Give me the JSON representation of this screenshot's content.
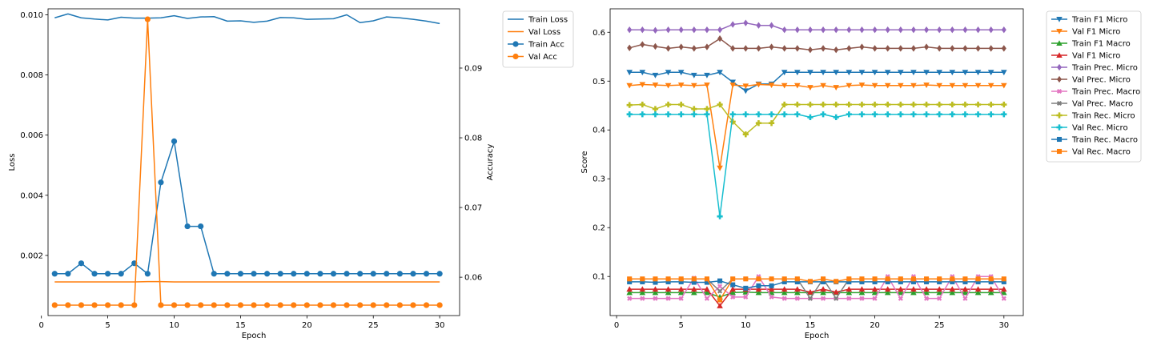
{
  "chart_data": [
    {
      "type": "line",
      "x": [
        1,
        2,
        3,
        4,
        5,
        6,
        7,
        8,
        9,
        10,
        11,
        12,
        13,
        14,
        15,
        16,
        17,
        18,
        19,
        20,
        21,
        22,
        23,
        24,
        25,
        26,
        27,
        28,
        29,
        30
      ],
      "xlabel": "Epoch",
      "ylabel": "Loss",
      "y2label": "Accuracy",
      "xlim": [
        0.5,
        31.5
      ],
      "ylim": [
        0.0,
        0.0102
      ],
      "y2lim": [
        0.0545,
        0.0985
      ],
      "xticks": [
        0,
        5,
        10,
        15,
        20,
        25,
        30
      ],
      "yticks": [
        0.002,
        0.004,
        0.006,
        0.008,
        0.01
      ],
      "ytick_labels": [
        "0.002",
        "0.004",
        "0.006",
        "0.008",
        "0.010"
      ],
      "y2ticks": [
        0.06,
        0.07,
        0.08,
        0.09
      ],
      "y2tick_labels": [
        "0.06",
        "0.07",
        "0.08",
        "0.09"
      ],
      "legend_position": "outside-right",
      "series": [
        {
          "name": "Train Loss",
          "axis": "left",
          "color": "#1f77b4",
          "marker": "none",
          "values": [
            0.0099,
            0.01003,
            0.0099,
            0.00986,
            0.00983,
            0.00992,
            0.00989,
            0.00989,
            0.0099,
            0.00997,
            0.00988,
            0.00993,
            0.00994,
            0.00979,
            0.0098,
            0.00975,
            0.00979,
            0.00991,
            0.0099,
            0.00985,
            0.00986,
            0.00987,
            0.01,
            0.00974,
            0.0098,
            0.00993,
            0.0099,
            0.00985,
            0.00979,
            0.00971
          ]
        },
        {
          "name": "Val Loss",
          "axis": "left",
          "color": "#ff7f0e",
          "marker": "none",
          "values": [
            0.00112,
            0.00112,
            0.00112,
            0.00112,
            0.00112,
            0.00112,
            0.00112,
            0.00113,
            0.00113,
            0.00112,
            0.00112,
            0.00112,
            0.00112,
            0.00112,
            0.00112,
            0.00112,
            0.00112,
            0.00112,
            0.00112,
            0.00112,
            0.00112,
            0.00112,
            0.00112,
            0.00112,
            0.00112,
            0.00112,
            0.00112,
            0.00112,
            0.00112,
            0.00112
          ]
        },
        {
          "name": "Train Acc",
          "axis": "right",
          "color": "#1f77b4",
          "marker": "circle",
          "values": [
            0.0605,
            0.0605,
            0.062,
            0.0605,
            0.0605,
            0.0605,
            0.062,
            0.0605,
            0.0736,
            0.0795,
            0.0673,
            0.0673,
            0.0605,
            0.0605,
            0.0605,
            0.0605,
            0.0605,
            0.0605,
            0.0605,
            0.0605,
            0.0605,
            0.0605,
            0.0605,
            0.0605,
            0.0605,
            0.0605,
            0.0605,
            0.0605,
            0.0605,
            0.0605
          ]
        },
        {
          "name": "Val Acc",
          "axis": "right",
          "color": "#ff7f0e",
          "marker": "circle",
          "values": [
            0.056,
            0.056,
            0.056,
            0.056,
            0.056,
            0.056,
            0.056,
            0.097,
            0.056,
            0.056,
            0.056,
            0.056,
            0.056,
            0.056,
            0.056,
            0.056,
            0.056,
            0.056,
            0.056,
            0.056,
            0.056,
            0.056,
            0.056,
            0.056,
            0.056,
            0.056,
            0.056,
            0.056,
            0.056,
            0.056
          ]
        }
      ]
    },
    {
      "type": "line",
      "x": [
        1,
        2,
        3,
        4,
        5,
        6,
        7,
        8,
        9,
        10,
        11,
        12,
        13,
        14,
        15,
        16,
        17,
        18,
        19,
        20,
        21,
        22,
        23,
        24,
        25,
        26,
        27,
        28,
        29,
        30
      ],
      "xlabel": "Epoch",
      "ylabel": "Score",
      "xlim": [
        -0.5,
        31.5
      ],
      "ylim": [
        0.02,
        0.648
      ],
      "xticks": [
        0,
        5,
        10,
        15,
        20,
        25,
        30
      ],
      "yticks": [
        0.1,
        0.2,
        0.3,
        0.4,
        0.5,
        0.6
      ],
      "ytick_labels": [
        "0.1",
        "0.2",
        "0.3",
        "0.4",
        "0.5",
        "0.6"
      ],
      "legend_position": "outside-right",
      "series": [
        {
          "name": "Train F1 Micro",
          "color": "#1f77b4",
          "marker": "triangle-down",
          "values": [
            0.518,
            0.518,
            0.512,
            0.518,
            0.518,
            0.512,
            0.512,
            0.518,
            0.498,
            0.48,
            0.494,
            0.494,
            0.518,
            0.518,
            0.518,
            0.518,
            0.518,
            0.518,
            0.518,
            0.518,
            0.518,
            0.518,
            0.518,
            0.518,
            0.518,
            0.518,
            0.518,
            0.518,
            0.518,
            0.518
          ]
        },
        {
          "name": "Val F1 Micro",
          "color": "#ff7f0e",
          "marker": "triangle-down",
          "values": [
            0.491,
            0.493,
            0.492,
            0.491,
            0.492,
            0.491,
            0.492,
            0.322,
            0.492,
            0.49,
            0.493,
            0.492,
            0.491,
            0.491,
            0.487,
            0.491,
            0.487,
            0.491,
            0.492,
            0.491,
            0.491,
            0.491,
            0.491,
            0.492,
            0.491,
            0.491,
            0.491,
            0.491,
            0.491,
            0.491
          ]
        },
        {
          "name": "Train F1 Macro",
          "color": "#2ca02c",
          "marker": "triangle-up",
          "values": [
            0.067,
            0.067,
            0.067,
            0.067,
            0.067,
            0.067,
            0.067,
            0.058,
            0.067,
            0.068,
            0.067,
            0.067,
            0.067,
            0.067,
            0.067,
            0.067,
            0.067,
            0.067,
            0.067,
            0.067,
            0.067,
            0.067,
            0.067,
            0.067,
            0.067,
            0.067,
            0.067,
            0.067,
            0.067,
            0.067
          ]
        },
        {
          "name": "Val F1 Micro",
          "color": "#d62728",
          "marker": "triangle-up",
          "values": [
            0.074,
            0.074,
            0.074,
            0.074,
            0.074,
            0.074,
            0.074,
            0.04,
            0.074,
            0.074,
            0.074,
            0.074,
            0.074,
            0.074,
            0.068,
            0.074,
            0.068,
            0.074,
            0.074,
            0.074,
            0.074,
            0.074,
            0.074,
            0.074,
            0.074,
            0.074,
            0.074,
            0.074,
            0.074,
            0.074
          ]
        },
        {
          "name": "Train Prec. Micro",
          "color": "#9467bd",
          "marker": "diamond",
          "values": [
            0.605,
            0.605,
            0.604,
            0.605,
            0.605,
            0.605,
            0.605,
            0.605,
            0.616,
            0.619,
            0.614,
            0.614,
            0.605,
            0.605,
            0.605,
            0.605,
            0.605,
            0.605,
            0.605,
            0.605,
            0.605,
            0.605,
            0.605,
            0.605,
            0.605,
            0.605,
            0.605,
            0.605,
            0.605,
            0.605
          ]
        },
        {
          "name": "Val Prec. Micro",
          "color": "#8c564b",
          "marker": "diamond",
          "values": [
            0.568,
            0.575,
            0.571,
            0.567,
            0.57,
            0.567,
            0.57,
            0.587,
            0.567,
            0.567,
            0.567,
            0.57,
            0.567,
            0.567,
            0.564,
            0.567,
            0.564,
            0.567,
            0.57,
            0.567,
            0.567,
            0.567,
            0.567,
            0.57,
            0.567,
            0.567,
            0.567,
            0.567,
            0.567,
            0.567
          ]
        },
        {
          "name": "Train Prec. Macro",
          "color": "#e377c2",
          "marker": "x",
          "values": [
            0.055,
            0.055,
            0.055,
            0.055,
            0.055,
            0.097,
            0.055,
            0.08,
            0.058,
            0.058,
            0.1,
            0.058,
            0.055,
            0.055,
            0.055,
            0.055,
            0.055,
            0.055,
            0.055,
            0.055,
            0.1,
            0.055,
            0.1,
            0.055,
            0.055,
            0.1,
            0.055,
            0.1,
            0.1,
            0.055
          ]
        },
        {
          "name": "Val Prec. Macro",
          "color": "#7f7f7f",
          "marker": "x",
          "values": [
            0.095,
            0.095,
            0.095,
            0.095,
            0.095,
            0.095,
            0.095,
            0.07,
            0.095,
            0.095,
            0.095,
            0.095,
            0.095,
            0.095,
            0.055,
            0.095,
            0.055,
            0.095,
            0.095,
            0.095,
            0.095,
            0.095,
            0.095,
            0.095,
            0.095,
            0.095,
            0.095,
            0.095,
            0.095,
            0.095
          ]
        },
        {
          "name": "Train Rec. Micro",
          "color": "#bcbd22",
          "marker": "plus",
          "values": [
            0.451,
            0.452,
            0.443,
            0.452,
            0.452,
            0.443,
            0.443,
            0.452,
            0.417,
            0.391,
            0.414,
            0.414,
            0.452,
            0.452,
            0.452,
            0.452,
            0.452,
            0.452,
            0.452,
            0.452,
            0.452,
            0.452,
            0.452,
            0.452,
            0.452,
            0.452,
            0.452,
            0.452,
            0.452,
            0.452
          ]
        },
        {
          "name": "Val Rec. Micro",
          "color": "#17becf",
          "marker": "plus",
          "values": [
            0.432,
            0.432,
            0.432,
            0.432,
            0.432,
            0.432,
            0.432,
            0.223,
            0.432,
            0.432,
            0.432,
            0.432,
            0.432,
            0.432,
            0.426,
            0.432,
            0.426,
            0.432,
            0.432,
            0.432,
            0.432,
            0.432,
            0.432,
            0.432,
            0.432,
            0.432,
            0.432,
            0.432,
            0.432,
            0.432
          ]
        },
        {
          "name": "Train Rec. Macro",
          "color": "#1f77b4",
          "marker": "square",
          "values": [
            0.089,
            0.089,
            0.088,
            0.089,
            0.089,
            0.088,
            0.088,
            0.091,
            0.083,
            0.076,
            0.081,
            0.081,
            0.089,
            0.089,
            0.089,
            0.089,
            0.089,
            0.089,
            0.089,
            0.089,
            0.089,
            0.089,
            0.089,
            0.089,
            0.089,
            0.089,
            0.089,
            0.089,
            0.089,
            0.089
          ]
        },
        {
          "name": "Val Rec. Macro",
          "color": "#ff7f0e",
          "marker": "square",
          "values": [
            0.095,
            0.095,
            0.095,
            0.095,
            0.095,
            0.095,
            0.095,
            0.052,
            0.095,
            0.095,
            0.095,
            0.095,
            0.095,
            0.095,
            0.09,
            0.095,
            0.09,
            0.095,
            0.095,
            0.095,
            0.095,
            0.095,
            0.095,
            0.095,
            0.095,
            0.095,
            0.095,
            0.095,
            0.095,
            0.095
          ]
        }
      ]
    }
  ]
}
